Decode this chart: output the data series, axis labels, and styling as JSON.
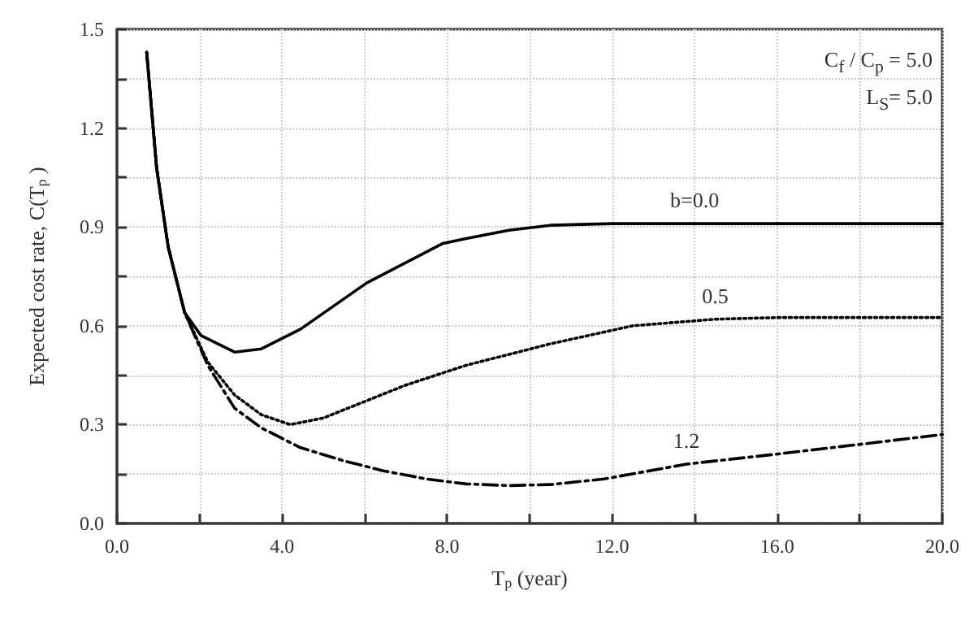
{
  "chart_data": {
    "type": "line",
    "xlabel": "T$_{p}$ (year)",
    "ylabel": "Expected cost rate, C(T$_{p}$ )",
    "xlim": [
      0,
      20
    ],
    "ylim": [
      0,
      1.5
    ],
    "xticks": [
      {
        "value": 0,
        "label": "0.0"
      },
      {
        "value": 2,
        "label": null
      },
      {
        "value": 4,
        "label": "4.0"
      },
      {
        "value": 6,
        "label": null
      },
      {
        "value": 8,
        "label": "8.0"
      },
      {
        "value": 10,
        "label": null
      },
      {
        "value": 12,
        "label": "12.0"
      },
      {
        "value": 14,
        "label": null
      },
      {
        "value": 16,
        "label": "16.0"
      },
      {
        "value": 18,
        "label": null
      },
      {
        "value": 20,
        "label": "20.0"
      }
    ],
    "yticks": [
      {
        "value": 0,
        "label": "0.0"
      },
      {
        "value": 0.15,
        "label": null
      },
      {
        "value": 0.3,
        "label": "0.3"
      },
      {
        "value": 0.45,
        "label": null
      },
      {
        "value": 0.6,
        "label": "0.6"
      },
      {
        "value": 0.75,
        "label": null
      },
      {
        "value": 0.9,
        "label": "0.9"
      },
      {
        "value": 1.05,
        "label": null
      },
      {
        "value": 1.2,
        "label": "1.2"
      },
      {
        "value": 1.35,
        "label": null
      },
      {
        "value": 1.5,
        "label": "1.5"
      }
    ],
    "grid": true,
    "legend": false,
    "marker": "none",
    "series": [
      {
        "name": "b=0.0",
        "color": "#000000",
        "line_style": "solid",
        "x": [
          0.72,
          0.96,
          1.24,
          1.64,
          2.04,
          2.85,
          3.5,
          4.45,
          6.05,
          7.9,
          8.46,
          9.5,
          10.5,
          12,
          14,
          16,
          18,
          20
        ],
        "values": [
          1.43,
          1.08,
          0.84,
          0.64,
          0.57,
          0.52,
          0.53,
          0.59,
          0.73,
          0.85,
          0.865,
          0.89,
          0.905,
          0.91,
          0.91,
          0.91,
          0.91,
          0.91
        ]
      },
      {
        "name": "0.5",
        "color": "#000000",
        "line_style": "dotted",
        "x": [
          0.72,
          0.96,
          1.24,
          1.64,
          2.2,
          2.85,
          3.5,
          4.2,
          5,
          5.8,
          7,
          8.46,
          10.5,
          12.5,
          14.5,
          16,
          18,
          20
        ],
        "values": [
          1.43,
          1.08,
          0.84,
          0.64,
          0.49,
          0.39,
          0.33,
          0.3,
          0.32,
          0.36,
          0.42,
          0.48,
          0.545,
          0.6,
          0.62,
          0.625,
          0.625,
          0.625
        ]
      },
      {
        "name": "1.2",
        "color": "#000000",
        "line_style": "dashdot",
        "x": [
          0.72,
          0.96,
          1.24,
          1.64,
          2.2,
          2.85,
          3.5,
          4.45,
          5.5,
          6.45,
          7.5,
          8.46,
          9.5,
          10.5,
          11.8,
          13.8,
          15.95,
          18,
          20
        ],
        "values": [
          1.43,
          1.08,
          0.84,
          0.64,
          0.48,
          0.35,
          0.29,
          0.23,
          0.19,
          0.16,
          0.135,
          0.12,
          0.115,
          0.118,
          0.135,
          0.18,
          0.21,
          0.24,
          0.27
        ]
      }
    ],
    "annotations": [
      "C$_{f}$ / C$_{p}$ = 5.0",
      "L$_{S}$= 5.0"
    ]
  }
}
